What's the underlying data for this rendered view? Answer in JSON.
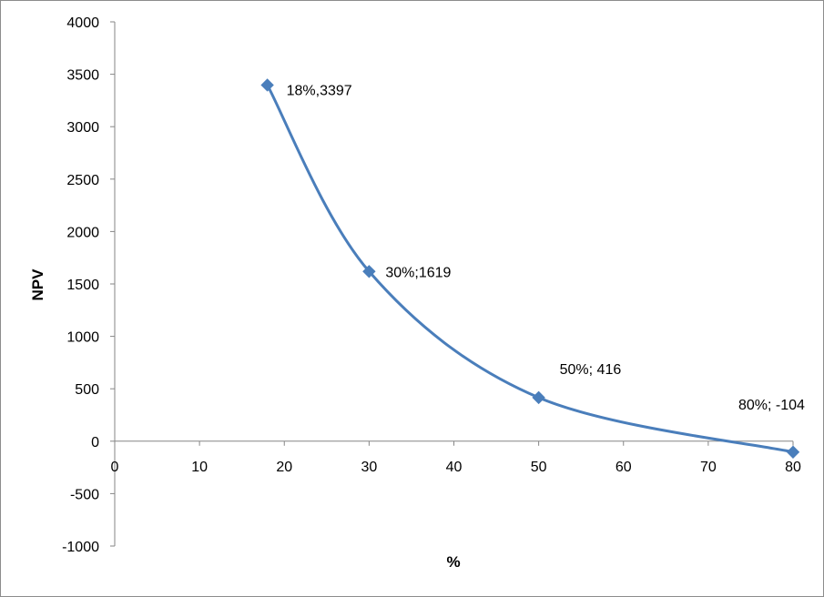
{
  "chart_data": {
    "type": "scatter",
    "smooth": true,
    "title": "",
    "xlabel": "%",
    "ylabel": "NPV",
    "xlim": [
      0,
      80
    ],
    "ylim": [
      -1000,
      4000
    ],
    "x_ticks": [
      0,
      10,
      20,
      30,
      40,
      50,
      60,
      70,
      80
    ],
    "y_ticks": [
      -1000,
      -500,
      0,
      500,
      1000,
      1500,
      2000,
      2500,
      3000,
      3500,
      4000
    ],
    "grid": false,
    "legend": "none",
    "series_color": "#4a7ebb",
    "series": [
      {
        "x": [
          18,
          30,
          50,
          80
        ],
        "y": [
          3397,
          1619,
          416,
          -104
        ],
        "labels": [
          "18%,3397",
          "30%;1619",
          "50%; 416",
          "80%; -104"
        ]
      }
    ]
  }
}
